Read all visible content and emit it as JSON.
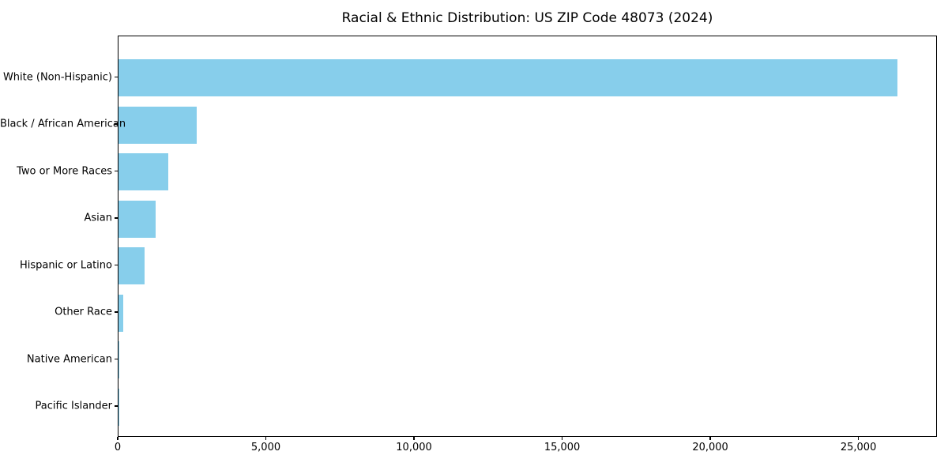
{
  "chart_data": {
    "type": "bar",
    "orientation": "horizontal",
    "title": "Racial & Ethnic Distribution: US ZIP Code 48073 (2024)",
    "categories": [
      "White (Non-Hispanic)",
      "Black / African American",
      "Two or More Races",
      "Asian",
      "Hispanic or Latino",
      "Other Race",
      "Native American",
      "Pacific Islander"
    ],
    "values": [
      26300,
      2650,
      1680,
      1250,
      880,
      170,
      25,
      10
    ],
    "bar_color": "#87CEEB",
    "background_color": "#ffffff",
    "text_color": "#000000",
    "xlabel": "",
    "ylabel": "",
    "xlim": [
      0,
      27650
    ],
    "x_ticks": [
      0,
      5000,
      10000,
      15000,
      20000,
      25000
    ],
    "x_tick_labels": [
      "0",
      "5,000",
      "10,000",
      "15,000",
      "20,000",
      "25,000"
    ],
    "grid": false,
    "legend": "none"
  }
}
